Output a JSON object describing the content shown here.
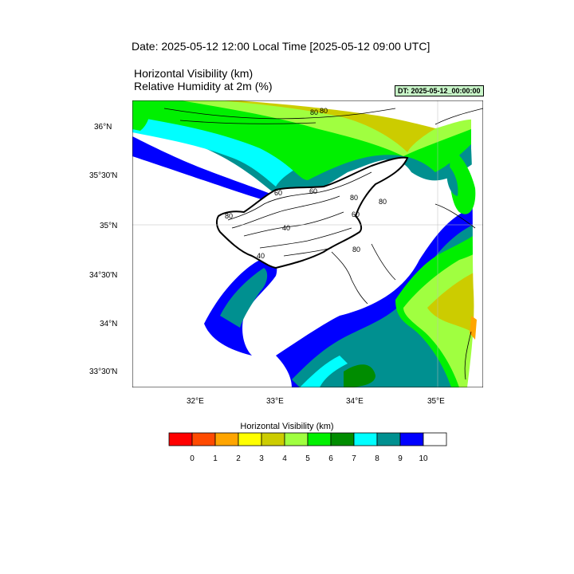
{
  "header": {
    "date_title": "Date: 2025-05-12  12:00 Local Time [2025-05-12  09:00 UTC]",
    "title_line1": "Horizontal Visibility   (km)",
    "title_line2": "Relative Humidity at 2m   (%)",
    "dt_badge": "DT: 2025-05-12_00:00:00"
  },
  "map": {
    "lat_labels": [
      "36°N",
      "35°30'N",
      "35°N",
      "34°30'N",
      "34°N",
      "33°30'N"
    ],
    "lon_labels": [
      "32°E",
      "33°E",
      "34°E",
      "35°E"
    ],
    "contour_labels": [
      "80",
      "60",
      "60",
      "80",
      "80",
      "40",
      "80",
      "60",
      "40",
      "80",
      "80"
    ]
  },
  "colorbar": {
    "title": "Horizontal Visibility  (km)",
    "colors": [
      "#ff0000",
      "#ff4a00",
      "#ffa500",
      "#ffff00",
      "#cccc00",
      "#a0ff40",
      "#00f000",
      "#008c00",
      "#00ffff",
      "#009090",
      "#0000ff",
      "#ffffff"
    ],
    "tick_labels": [
      "0",
      "1",
      "2",
      "3",
      "4",
      "5",
      "6",
      "7",
      "8",
      "9",
      "10"
    ]
  }
}
